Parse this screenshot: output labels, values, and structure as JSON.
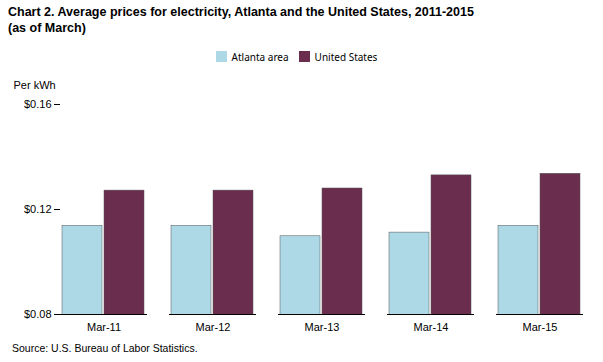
{
  "chart_data": {
    "type": "bar",
    "title": "Chart 2.   Average prices for electricity, Atlanta and the United States, 2011-2015",
    "subtitle": "(as of March)",
    "ylabel": "Per kWh",
    "caption": "Source: U.S. Bureau of Labor Statistics.",
    "categories": [
      "Mar-11",
      "Mar-12",
      "Mar-13",
      "Mar-14",
      "Mar-15"
    ],
    "series": [
      {
        "name": "Atlanta area",
        "color": "#ADD8E6",
        "values": [
          0.1138,
          0.1138,
          0.1098,
          0.1112,
          0.1138
        ]
      },
      {
        "name": "United States",
        "color": "#6B2D4E",
        "values": [
          0.1272,
          0.1272,
          0.128,
          0.133,
          0.1336
        ]
      }
    ],
    "ylim": [
      0.08,
      0.16
    ],
    "yticks": [
      {
        "value": 0.08,
        "label": "$0.08"
      },
      {
        "value": 0.12,
        "label": "$0.12"
      },
      {
        "value": 0.16,
        "label": "$0.16"
      }
    ],
    "grid": false,
    "legend": "top"
  }
}
